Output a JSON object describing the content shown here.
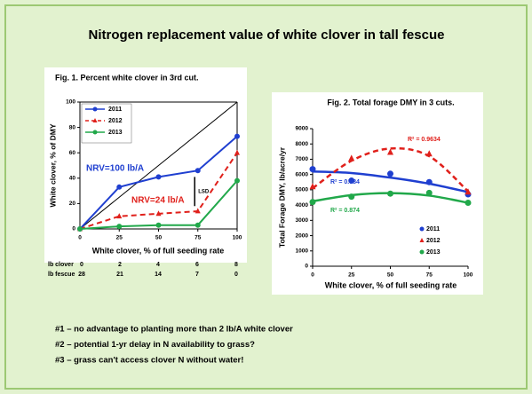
{
  "title": "Nitrogen replacement value of white clover in tall fescue",
  "seeding_table": {
    "rows": [
      {
        "label": "lb clover",
        "values": [
          0,
          2,
          4,
          6,
          8
        ]
      },
      {
        "label": "lb fescue",
        "values": [
          28,
          21,
          14,
          7,
          0
        ]
      }
    ]
  },
  "notes": [
    "#1 – no advantage to planting more than 2 lb/A white clover",
    "#2 – potential 1-yr delay in N availability to grass?",
    "#3 – grass can't access clover N without water!"
  ],
  "chart_data": [
    {
      "type": "line",
      "title": "Fig. 1. Percent white clover in 3rd cut.",
      "x_label": "White clover, % of full seeding rate",
      "y_label": "White clover, % of DMY",
      "x": [
        0,
        25,
        50,
        75,
        100
      ],
      "xlim": [
        0,
        100
      ],
      "xticks": [
        0,
        25,
        50,
        75,
        100
      ],
      "ylim": [
        0,
        100
      ],
      "yticks": [
        0,
        20,
        40,
        60,
        80,
        100
      ],
      "series": [
        {
          "name": "2011",
          "color": "#1f3fd0",
          "marker": "circle",
          "line_style": "solid",
          "values": [
            0,
            33,
            41,
            46,
            73
          ]
        },
        {
          "name": "2012",
          "color": "#e0201b",
          "marker": "triangle",
          "line_style": "dashed",
          "values": [
            0,
            10,
            12,
            14,
            60
          ]
        },
        {
          "name": "2013",
          "color": "#21a84a",
          "marker": "circle",
          "line_style": "solid",
          "values": [
            0,
            2,
            3,
            3,
            38
          ]
        }
      ],
      "reference_line": {
        "x": [
          0,
          100
        ],
        "values": [
          0,
          100
        ]
      },
      "lsd": {
        "label": "LSD",
        "x": 73,
        "values": [
          18,
          41
        ]
      },
      "annotations": [
        {
          "text": "NRV=100 lb/A",
          "color": "#1f3fd0"
        },
        {
          "text": "NRV=24 lb/A",
          "color": "#e0201b"
        }
      ],
      "legend": "upper left"
    },
    {
      "type": "scatter",
      "title": "Fig. 2. Total forage DMY in 3 cuts.",
      "x_label": "White clover, % of full seeding rate",
      "y_label": "Total Forage DMY, lb/acre/yr",
      "x": [
        0,
        25,
        50,
        75,
        100
      ],
      "xlim": [
        0,
        100
      ],
      "xticks": [
        0,
        25,
        50,
        75,
        100
      ],
      "ylim": [
        0,
        9000
      ],
      "yticks": [
        0,
        1000,
        2000,
        3000,
        4000,
        5000,
        6000,
        7000,
        8000,
        9000
      ],
      "series": [
        {
          "name": "2011",
          "color": "#1f3fd0",
          "marker": "circle",
          "line_style": "solid",
          "values": [
            6350,
            5600,
            6050,
            5500,
            4700
          ],
          "trend": [
            6200,
            6100,
            5800,
            5400,
            4850
          ],
          "r2_label": "R² = 0.784"
        },
        {
          "name": "2012",
          "color": "#e0201b",
          "marker": "triangle",
          "line_style": "dashed",
          "values": [
            5200,
            7050,
            7450,
            7350,
            4850
          ],
          "trend": [
            5100,
            6900,
            7700,
            7200,
            4900
          ],
          "r2_label": "R² = 0.9634"
        },
        {
          "name": "2013",
          "color": "#21a84a",
          "marker": "circle",
          "line_style": "solid",
          "values": [
            4200,
            4550,
            4750,
            4800,
            4150
          ],
          "trend": [
            4250,
            4650,
            4780,
            4620,
            4150
          ],
          "r2_label": "R² = 0.874"
        }
      ],
      "legend": "lower right"
    }
  ]
}
